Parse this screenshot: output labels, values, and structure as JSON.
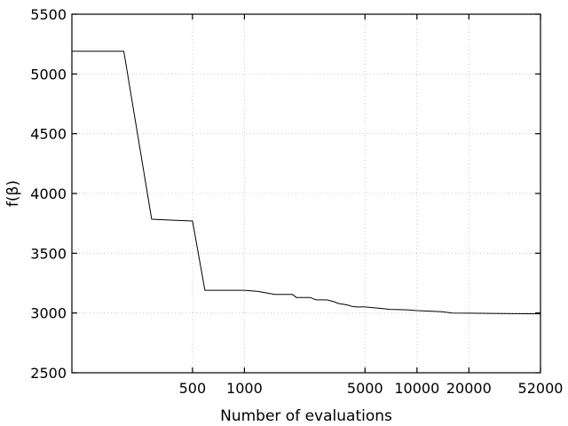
{
  "chart_data": {
    "type": "line",
    "xlabel": "Number of evaluations",
    "ylabel": "f(β)",
    "x_scale": "log",
    "xlim": [
      100,
      52000
    ],
    "ylim": [
      2500,
      5500
    ],
    "x_ticks": [
      500,
      1000,
      5000,
      10000,
      20000,
      52000
    ],
    "x_tick_labels": [
      "500",
      "1000",
      "5000",
      "10000",
      "20000",
      "52000"
    ],
    "y_ticks": [
      2500,
      3000,
      3500,
      4000,
      4500,
      5000,
      5500
    ],
    "y_tick_labels": [
      "2500",
      "3000",
      "3500",
      "4000",
      "4500",
      "5000",
      "5500"
    ],
    "grid": true,
    "series": [
      {
        "x": [
          100,
          200,
          290,
          400,
          500,
          590,
          1000,
          1200,
          1500,
          1900,
          2000,
          2400,
          2600,
          3000,
          3300,
          3500,
          4000,
          4200,
          4500,
          5000,
          5500,
          6000,
          7000,
          8000,
          9000,
          10000,
          12000,
          14000,
          16000,
          20000,
          30000,
          52000
        ],
        "y": [
          5190,
          5190,
          3785,
          3775,
          3770,
          3190,
          3190,
          3180,
          3155,
          3155,
          3130,
          3130,
          3110,
          3110,
          3095,
          3080,
          3065,
          3055,
          3050,
          3050,
          3045,
          3040,
          3030,
          3028,
          3025,
          3020,
          3015,
          3010,
          3000,
          2998,
          2995,
          2993
        ]
      }
    ]
  }
}
